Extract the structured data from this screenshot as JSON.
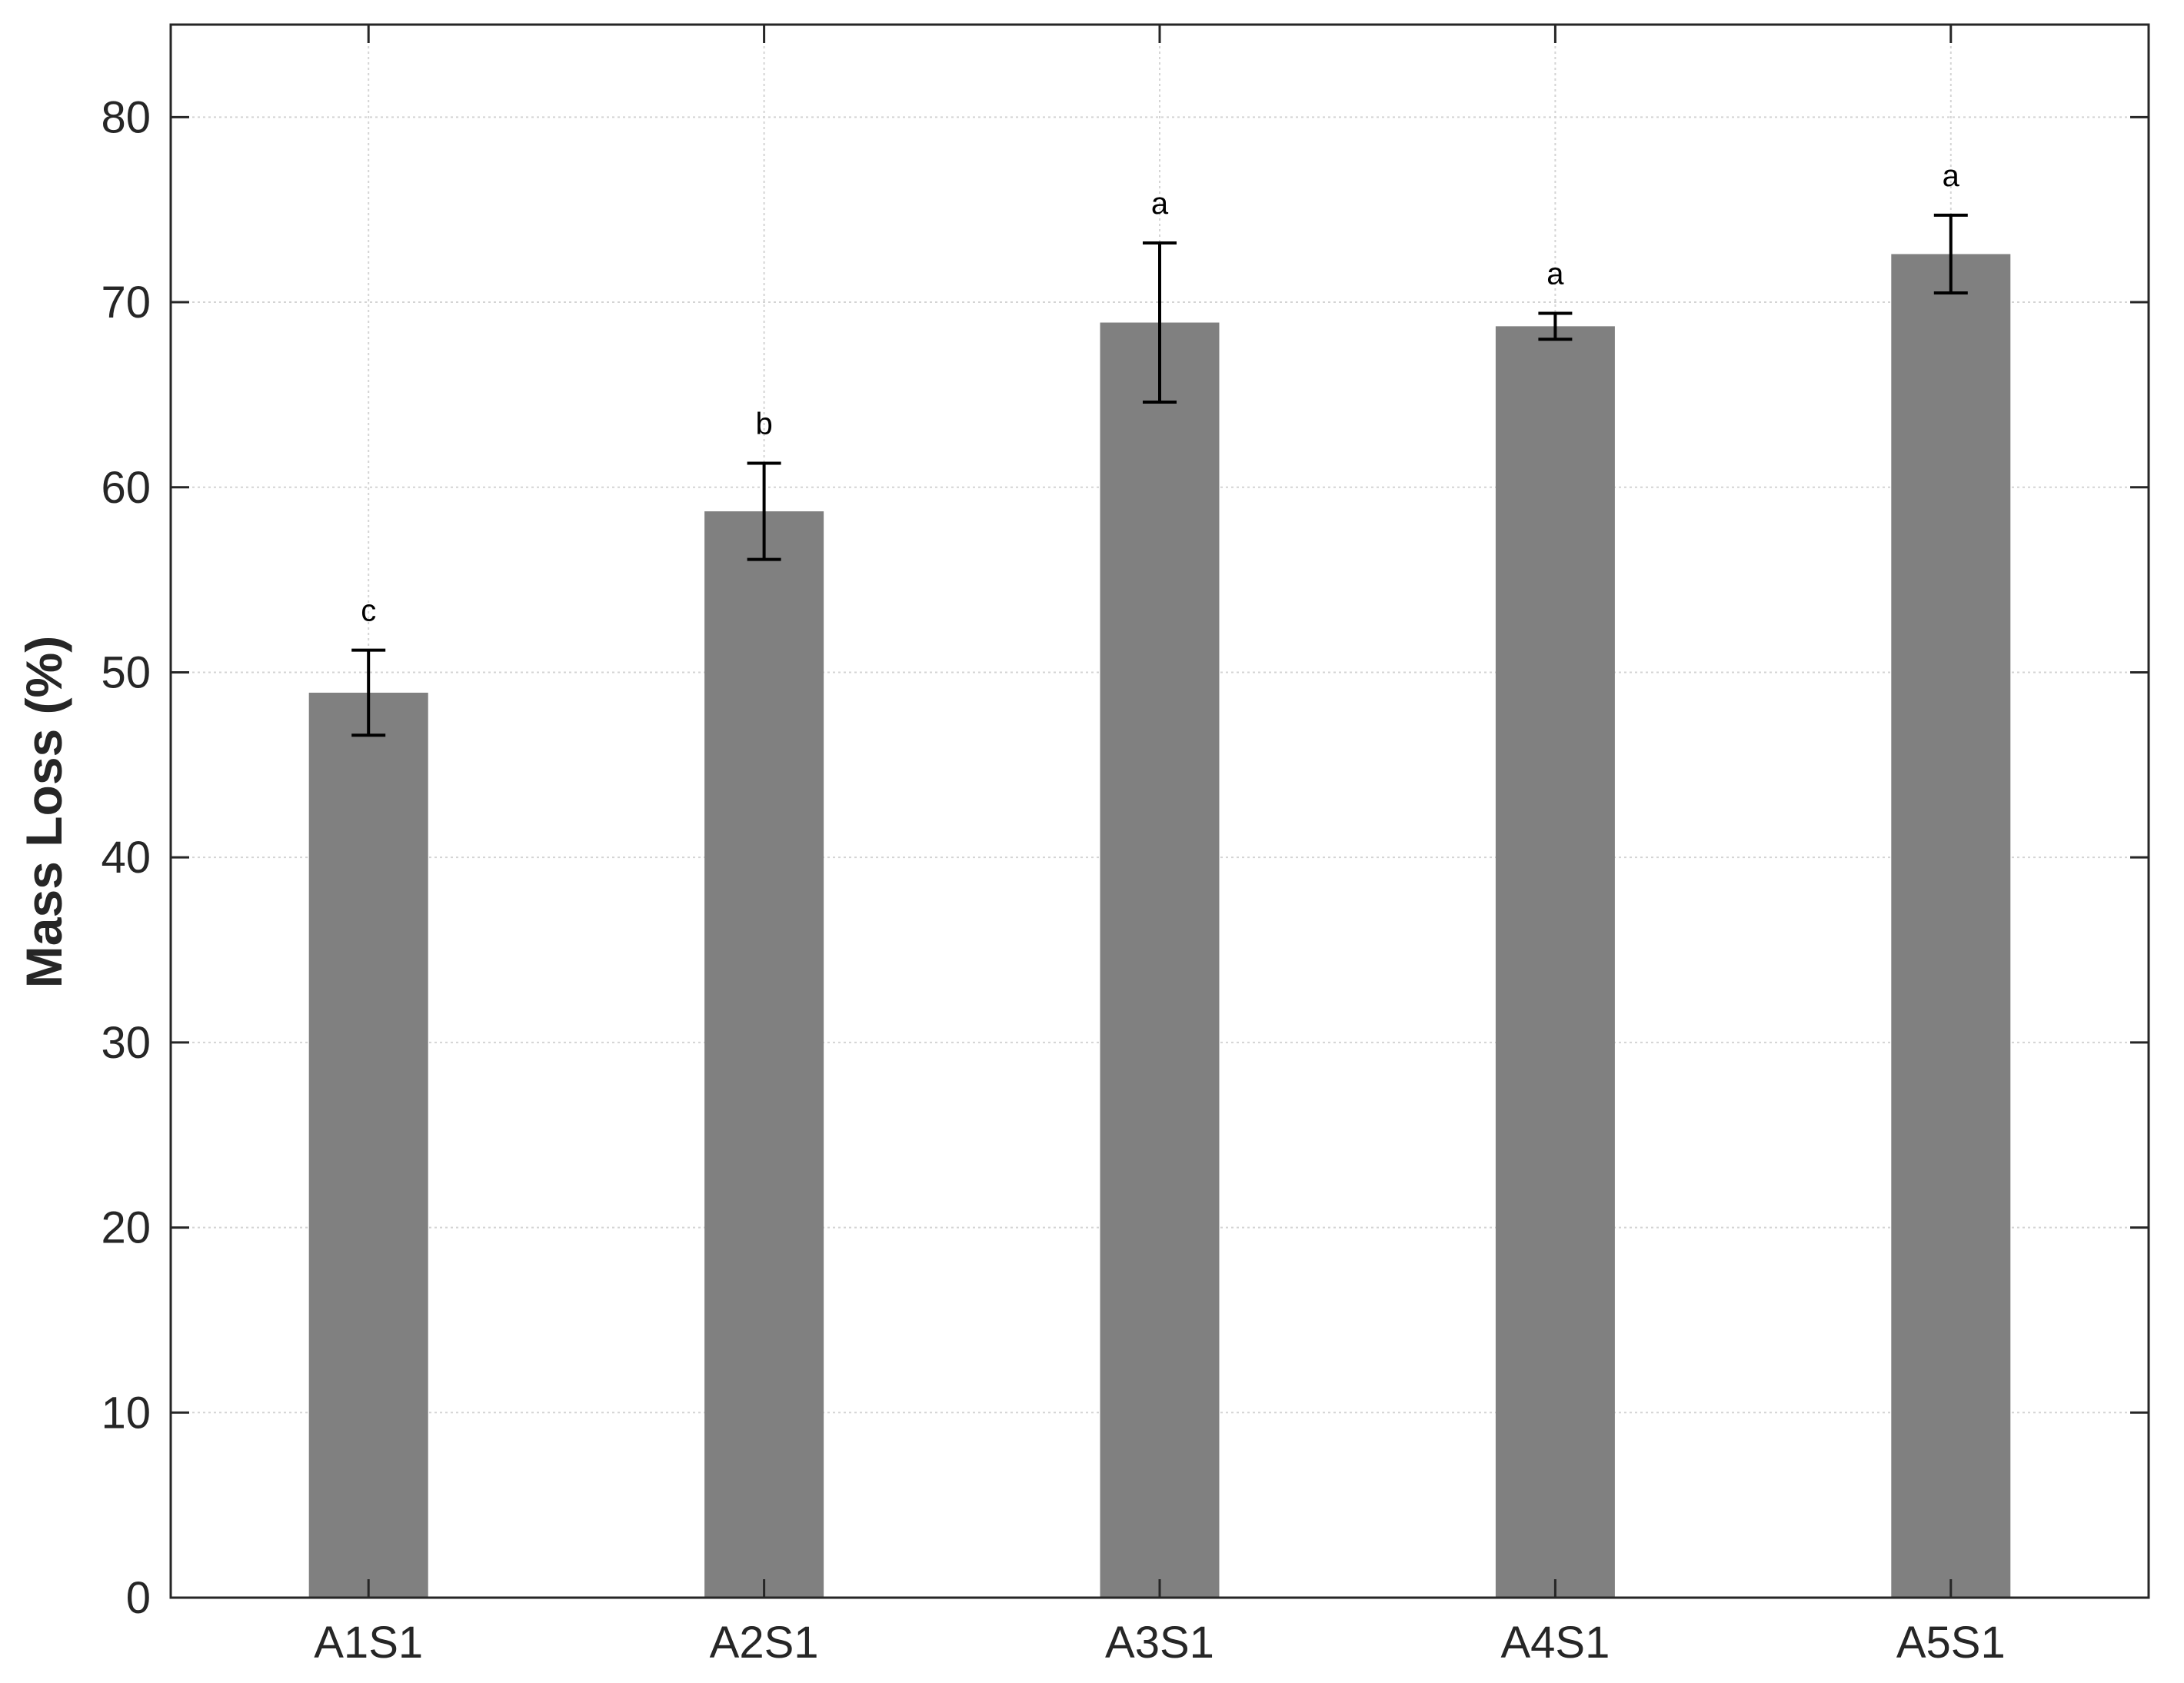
{
  "chart_data": {
    "type": "bar",
    "categories": [
      "A1S1",
      "A2S1",
      "A3S1",
      "A4S1",
      "A5S1"
    ],
    "values": [
      48.9,
      58.7,
      68.9,
      68.7,
      72.6
    ],
    "errors": [
      2.3,
      2.6,
      4.3,
      0.7,
      2.1
    ],
    "significance_labels": [
      "c",
      "b",
      "a",
      "a",
      "a"
    ],
    "ylabel": "Mass Loss (%)",
    "xlabel": "",
    "title": "",
    "ylim": [
      0,
      85
    ],
    "yticks": [
      0,
      10,
      20,
      30,
      40,
      50,
      60,
      70,
      80
    ],
    "grid": true,
    "legend": "none",
    "colors": {
      "bar": "#808080",
      "error_bar": "#000000",
      "axis": "#262626",
      "grid": "#d4d4d4"
    }
  }
}
